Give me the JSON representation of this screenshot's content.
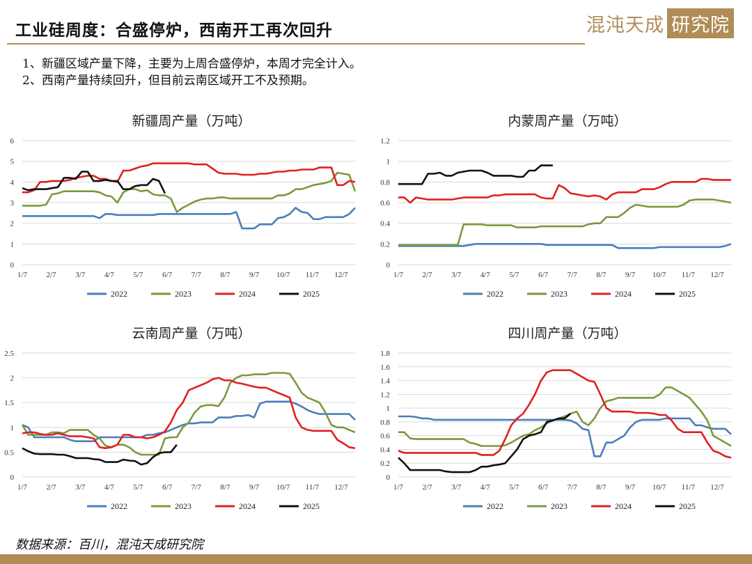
{
  "header": {
    "title": "工业硅周度：合盛停炉，西南开工再次回升",
    "logo_text": "混沌天成",
    "logo_box_text": "研究院"
  },
  "notes": [
    "1、新疆区域产量下降，主要为上周合盛停炉，本周才完全计入。",
    "2、西南产量持续回升，但目前云南区域开工不及预期。"
  ],
  "source": "数据来源：百川，混沌天成研究院",
  "colors": {
    "brand": "#b08d57",
    "s2022": "#4a7ebb",
    "s2023": "#7a9a3c",
    "s2024": "#e02020",
    "s2025": "#111111"
  },
  "chart_data": [
    {
      "id": "xinjiang",
      "type": "line",
      "title": "新疆周产量（万吨）",
      "x_labels": [
        "1/7",
        "2/7",
        "3/7",
        "4/7",
        "5/7",
        "6/7",
        "7/7",
        "8/7",
        "9/7",
        "10/7",
        "11/7",
        "12/7"
      ],
      "ylim": [
        0,
        6
      ],
      "yticks": [
        "0",
        "1",
        "2",
        "3",
        "4",
        "5",
        "6"
      ],
      "grid": true,
      "legend": "bottom",
      "series": [
        {
          "name": "2022",
          "values": [
            2.35,
            2.35,
            2.35,
            2.35,
            2.35,
            2.35,
            2.35,
            2.35,
            2.35,
            2.35,
            2.35,
            2.35,
            2.35,
            2.25,
            2.45,
            2.45,
            2.4,
            2.4,
            2.4,
            2.4,
            2.4,
            2.4,
            2.4,
            2.45,
            2.45,
            2.45,
            2.45,
            2.45,
            2.45,
            2.45,
            2.45,
            2.45,
            2.45,
            2.45,
            2.45,
            2.45,
            2.55,
            1.75,
            1.75,
            1.75,
            1.95,
            1.95,
            1.95,
            2.25,
            2.3,
            2.45,
            2.75,
            2.55,
            2.5,
            2.2,
            2.2,
            2.3,
            2.3,
            2.3,
            2.3,
            2.45,
            2.75
          ]
        },
        {
          "name": "2023",
          "values": [
            2.85,
            2.85,
            2.85,
            2.85,
            2.9,
            3.4,
            3.45,
            3.55,
            3.55,
            3.55,
            3.55,
            3.55,
            3.55,
            3.5,
            3.35,
            3.3,
            3.0,
            3.5,
            3.65,
            3.65,
            3.55,
            3.6,
            3.4,
            3.35,
            3.35,
            3.2,
            2.55,
            2.75,
            2.9,
            3.05,
            3.15,
            3.2,
            3.2,
            3.25,
            3.25,
            3.2,
            3.2,
            3.2,
            3.2,
            3.2,
            3.2,
            3.2,
            3.2,
            3.35,
            3.35,
            3.45,
            3.65,
            3.65,
            3.75,
            3.85,
            3.9,
            3.95,
            4.05,
            4.45,
            4.4,
            4.35,
            3.55
          ]
        },
        {
          "name": "2024",
          "values": [
            3.5,
            3.5,
            3.6,
            4.0,
            4.0,
            4.05,
            4.05,
            4.05,
            4.1,
            4.2,
            4.25,
            4.3,
            4.3,
            4.15,
            4.15,
            4.05,
            4.0,
            4.55,
            4.55,
            4.65,
            4.75,
            4.8,
            4.9,
            4.9,
            4.9,
            4.9,
            4.9,
            4.9,
            4.9,
            4.85,
            4.85,
            4.85,
            4.65,
            4.45,
            4.4,
            4.4,
            4.4,
            4.35,
            4.35,
            4.35,
            4.4,
            4.4,
            4.45,
            4.5,
            4.5,
            4.55,
            4.55,
            4.6,
            4.6,
            4.6,
            4.7,
            4.7,
            4.7,
            3.85,
            3.85,
            4.05,
            4.0
          ]
        },
        {
          "name": "2025",
          "values": [
            3.7,
            3.6,
            3.65,
            3.65,
            3.65,
            3.7,
            3.75,
            4.2,
            4.2,
            4.15,
            4.5,
            4.5,
            4.05,
            4.05,
            4.1,
            4.05,
            4.05,
            3.65,
            3.65,
            3.8,
            3.85,
            3.85,
            4.15,
            4.05,
            3.45
          ]
        }
      ]
    },
    {
      "id": "neimeng",
      "type": "line",
      "title": "内蒙周产量（万吨）",
      "x_labels": [
        "1/7",
        "2/7",
        "3/7",
        "4/7",
        "5/7",
        "6/7",
        "7/7",
        "8/7",
        "9/7",
        "10/7",
        "11/7",
        "12/7"
      ],
      "ylim": [
        0,
        1.2
      ],
      "yticks": [
        "0",
        "0.2",
        "0.4",
        "0.6",
        "0.8",
        "1",
        "1.2"
      ],
      "grid": true,
      "legend": "bottom",
      "series": [
        {
          "name": "2022",
          "values": [
            0.18,
            0.18,
            0.18,
            0.18,
            0.18,
            0.18,
            0.18,
            0.18,
            0.18,
            0.18,
            0.18,
            0.18,
            0.19,
            0.2,
            0.2,
            0.2,
            0.2,
            0.2,
            0.2,
            0.2,
            0.2,
            0.2,
            0.2,
            0.2,
            0.2,
            0.19,
            0.19,
            0.19,
            0.19,
            0.19,
            0.19,
            0.19,
            0.19,
            0.19,
            0.19,
            0.19,
            0.19,
            0.16,
            0.16,
            0.16,
            0.16,
            0.16,
            0.16,
            0.16,
            0.17,
            0.17,
            0.17,
            0.17,
            0.17,
            0.17,
            0.17,
            0.17,
            0.17,
            0.17,
            0.17,
            0.18,
            0.2
          ]
        },
        {
          "name": "2023",
          "values": [
            0.19,
            0.19,
            0.19,
            0.19,
            0.19,
            0.19,
            0.19,
            0.19,
            0.19,
            0.19,
            0.19,
            0.39,
            0.39,
            0.39,
            0.39,
            0.38,
            0.38,
            0.38,
            0.38,
            0.38,
            0.36,
            0.36,
            0.36,
            0.36,
            0.37,
            0.37,
            0.37,
            0.37,
            0.37,
            0.37,
            0.37,
            0.37,
            0.39,
            0.4,
            0.4,
            0.46,
            0.46,
            0.46,
            0.5,
            0.55,
            0.58,
            0.57,
            0.56,
            0.56,
            0.56,
            0.56,
            0.56,
            0.56,
            0.58,
            0.62,
            0.63,
            0.63,
            0.63,
            0.63,
            0.62,
            0.61,
            0.6
          ]
        },
        {
          "name": "2024",
          "values": [
            0.65,
            0.65,
            0.6,
            0.65,
            0.64,
            0.63,
            0.63,
            0.63,
            0.63,
            0.63,
            0.64,
            0.65,
            0.65,
            0.65,
            0.65,
            0.65,
            0.67,
            0.67,
            0.68,
            0.68,
            0.68,
            0.68,
            0.68,
            0.68,
            0.65,
            0.64,
            0.64,
            0.77,
            0.74,
            0.69,
            0.68,
            0.67,
            0.66,
            0.67,
            0.66,
            0.63,
            0.68,
            0.7,
            0.7,
            0.7,
            0.7,
            0.73,
            0.73,
            0.73,
            0.75,
            0.78,
            0.8,
            0.8,
            0.8,
            0.8,
            0.8,
            0.83,
            0.83,
            0.82,
            0.82,
            0.82,
            0.82
          ]
        },
        {
          "name": "2025",
          "values": [
            0.78,
            0.78,
            0.78,
            0.78,
            0.78,
            0.88,
            0.88,
            0.89,
            0.86,
            0.86,
            0.89,
            0.9,
            0.91,
            0.91,
            0.91,
            0.89,
            0.86,
            0.86,
            0.86,
            0.86,
            0.85,
            0.85,
            0.91,
            0.91,
            0.96,
            0.96,
            0.96
          ]
        }
      ]
    },
    {
      "id": "yunnan",
      "type": "line",
      "title": "云南周产量（万吨）",
      "x_labels": [
        "1/7",
        "2/7",
        "3/7",
        "4/7",
        "5/7",
        "6/7",
        "7/7",
        "8/7",
        "9/7",
        "10/7",
        "11/7",
        "12/7"
      ],
      "ylim": [
        0,
        2.5
      ],
      "yticks": [
        "0",
        "0.5",
        "1",
        "1.5",
        "2",
        "2.5"
      ],
      "grid": true,
      "legend": "bottom",
      "series": [
        {
          "name": "2022",
          "values": [
            1.05,
            1.0,
            0.8,
            0.8,
            0.8,
            0.8,
            0.8,
            0.8,
            0.75,
            0.72,
            0.72,
            0.72,
            0.72,
            0.8,
            0.8,
            0.8,
            0.8,
            0.8,
            0.8,
            0.8,
            0.8,
            0.85,
            0.85,
            0.88,
            0.9,
            0.95,
            1.0,
            1.05,
            1.08,
            1.08,
            1.1,
            1.1,
            1.1,
            1.2,
            1.2,
            1.2,
            1.23,
            1.23,
            1.25,
            1.2,
            1.48,
            1.52,
            1.52,
            1.52,
            1.52,
            1.52,
            1.48,
            1.42,
            1.35,
            1.3,
            1.27,
            1.27,
            1.27,
            1.27,
            1.27,
            1.27,
            1.15
          ]
        },
        {
          "name": "2023",
          "values": [
            1.05,
            0.85,
            0.85,
            0.85,
            0.85,
            0.9,
            0.9,
            0.88,
            0.95,
            0.95,
            0.95,
            0.95,
            0.85,
            0.78,
            0.63,
            0.6,
            0.65,
            0.65,
            0.6,
            0.5,
            0.45,
            0.45,
            0.45,
            0.45,
            0.78,
            0.8,
            0.8,
            1.0,
            1.1,
            1.3,
            1.42,
            1.45,
            1.45,
            1.43,
            1.6,
            1.9,
            2.0,
            2.05,
            2.05,
            2.07,
            2.07,
            2.07,
            2.1,
            2.1,
            2.1,
            2.08,
            1.9,
            1.7,
            1.6,
            1.55,
            1.5,
            1.3,
            1.05,
            1.0,
            1.0,
            0.95,
            0.9
          ]
        },
        {
          "name": "2024",
          "values": [
            0.88,
            0.9,
            0.9,
            0.87,
            0.85,
            0.85,
            0.88,
            0.85,
            0.82,
            0.82,
            0.82,
            0.8,
            0.78,
            0.6,
            0.58,
            0.6,
            0.65,
            0.85,
            0.85,
            0.8,
            0.8,
            0.78,
            0.8,
            0.85,
            0.92,
            1.1,
            1.35,
            1.5,
            1.75,
            1.8,
            1.85,
            1.9,
            1.97,
            2.0,
            1.95,
            1.95,
            1.9,
            1.88,
            1.85,
            1.82,
            1.8,
            1.8,
            1.75,
            1.7,
            1.65,
            1.6,
            1.2,
            1.0,
            0.95,
            0.93,
            0.93,
            0.93,
            0.93,
            0.75,
            0.68,
            0.6,
            0.58
          ]
        },
        {
          "name": "2025",
          "values": [
            0.58,
            0.52,
            0.47,
            0.46,
            0.46,
            0.46,
            0.45,
            0.45,
            0.42,
            0.38,
            0.38,
            0.38,
            0.36,
            0.35,
            0.3,
            0.3,
            0.3,
            0.35,
            0.33,
            0.32,
            0.25,
            0.28,
            0.4,
            0.48,
            0.5,
            0.5,
            0.65
          ]
        }
      ]
    },
    {
      "id": "sichuan",
      "type": "line",
      "title": "四川周产量（万吨）",
      "x_labels": [
        "1/7",
        "2/7",
        "3/7",
        "4/7",
        "5/7",
        "6/7",
        "7/7",
        "8/7",
        "9/7",
        "10/7",
        "11/7",
        "12/7"
      ],
      "ylim": [
        0,
        1.8
      ],
      "yticks": [
        "0",
        "0.2",
        "0.4",
        "0.6",
        "0.8",
        "1",
        "1.2",
        "1.4",
        "1.6",
        "1.8"
      ],
      "grid": true,
      "legend": "bottom",
      "series": [
        {
          "name": "2022",
          "values": [
            0.88,
            0.88,
            0.88,
            0.87,
            0.85,
            0.85,
            0.83,
            0.83,
            0.83,
            0.83,
            0.83,
            0.83,
            0.83,
            0.83,
            0.83,
            0.83,
            0.83,
            0.83,
            0.83,
            0.83,
            0.83,
            0.83,
            0.83,
            0.83,
            0.83,
            0.83,
            0.83,
            0.83,
            0.83,
            0.82,
            0.78,
            0.7,
            0.68,
            0.3,
            0.3,
            0.5,
            0.5,
            0.55,
            0.6,
            0.72,
            0.8,
            0.83,
            0.83,
            0.83,
            0.83,
            0.85,
            0.85,
            0.85,
            0.85,
            0.85,
            0.75,
            0.75,
            0.72,
            0.7,
            0.7,
            0.7,
            0.62
          ]
        },
        {
          "name": "2023",
          "values": [
            0.65,
            0.65,
            0.56,
            0.55,
            0.55,
            0.55,
            0.55,
            0.55,
            0.55,
            0.55,
            0.55,
            0.55,
            0.5,
            0.48,
            0.45,
            0.45,
            0.45,
            0.45,
            0.46,
            0.5,
            0.55,
            0.6,
            0.62,
            0.68,
            0.72,
            0.78,
            0.82,
            0.85,
            0.88,
            0.92,
            0.95,
            0.8,
            0.75,
            0.85,
            1.0,
            1.1,
            1.12,
            1.15,
            1.15,
            1.15,
            1.15,
            1.15,
            1.15,
            1.15,
            1.2,
            1.3,
            1.3,
            1.25,
            1.2,
            1.15,
            1.05,
            0.95,
            0.82,
            0.6,
            0.55,
            0.5,
            0.45
          ]
        },
        {
          "name": "2024",
          "values": [
            0.38,
            0.35,
            0.35,
            0.35,
            0.35,
            0.35,
            0.35,
            0.35,
            0.35,
            0.35,
            0.35,
            0.35,
            0.35,
            0.35,
            0.32,
            0.32,
            0.32,
            0.38,
            0.55,
            0.75,
            0.85,
            0.92,
            1.05,
            1.2,
            1.4,
            1.52,
            1.55,
            1.55,
            1.55,
            1.55,
            1.5,
            1.45,
            1.4,
            1.38,
            1.2,
            1.0,
            0.95,
            0.95,
            0.95,
            0.95,
            0.93,
            0.93,
            0.93,
            0.92,
            0.9,
            0.9,
            0.82,
            0.7,
            0.65,
            0.65,
            0.65,
            0.65,
            0.5,
            0.38,
            0.35,
            0.3,
            0.28
          ]
        },
        {
          "name": "2025",
          "values": [
            0.28,
            0.2,
            0.1,
            0.1,
            0.1,
            0.1,
            0.1,
            0.1,
            0.08,
            0.07,
            0.07,
            0.07,
            0.07,
            0.1,
            0.15,
            0.15,
            0.17,
            0.18,
            0.2,
            0.3,
            0.4,
            0.55,
            0.6,
            0.62,
            0.65,
            0.8,
            0.82,
            0.85,
            0.85,
            0.92
          ]
        }
      ]
    }
  ]
}
